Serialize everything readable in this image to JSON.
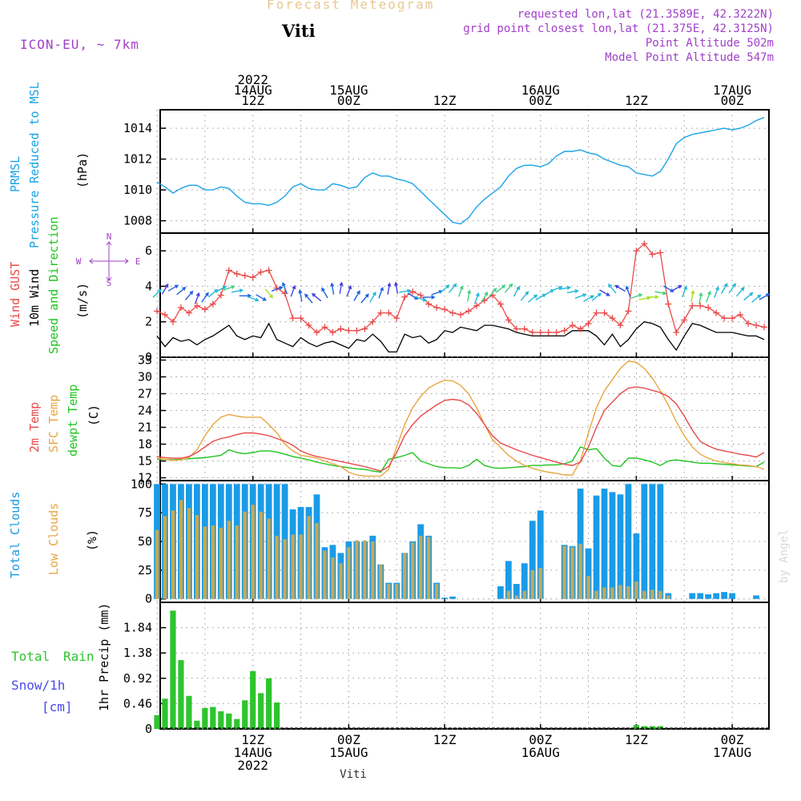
{
  "header": {
    "title": "Forecast Meteogram",
    "location": "Viti",
    "model": "ICON-EU, ~ 7km",
    "requested": "requested lon,lat (21.3589E, 42.3222N)",
    "grid_point": "grid point closest lon,lat (21.375E, 42.3125N)",
    "point_altitude": "Point Altitude 502m",
    "model_altitude": "Model Point Altitude 547m",
    "credit": "by Angel",
    "footer_location": "Viti"
  },
  "colors": {
    "prmsl": "#1aa3e8",
    "gust": "#e84a4a",
    "wind": "#000000",
    "t2m": "#e84a4a",
    "tsfc": "#e8a640",
    "dewpt": "#1fc41f",
    "total_cloud": "#1a9be8",
    "low_cloud": "#c8a850",
    "rain": "#2ec42e",
    "snow": "#4a4ae8",
    "title": "#e8c890",
    "meta": "#a040c8"
  },
  "chart_data": [
    {
      "type": "line",
      "id": "pressure",
      "ylabel": "PRMSL Pressure Reduced to MSL",
      "units": "(hPa)",
      "ylim": [
        1007.2,
        1015.2
      ],
      "yticks": [
        "1008",
        "1010",
        "1012",
        "1014"
      ],
      "x": [
        0,
        1,
        2,
        3,
        4,
        5,
        6,
        7,
        8,
        9,
        10,
        11,
        12,
        13,
        14,
        15,
        16,
        17,
        18,
        19,
        20,
        21,
        22,
        23,
        24,
        25,
        26,
        27,
        28,
        29,
        30,
        31,
        32,
        33,
        34,
        35,
        36,
        37,
        38,
        39,
        40,
        41,
        42,
        43,
        44,
        45,
        46,
        47,
        48,
        49,
        50,
        51,
        52,
        53,
        54,
        55,
        56,
        57,
        58,
        59,
        60,
        61,
        62,
        63,
        64,
        65,
        66,
        67,
        68,
        69,
        70,
        71,
        72,
        73,
        74,
        75,
        76
      ],
      "series": [
        {
          "name": "PRMSL",
          "values": [
            1010.5,
            1010.2,
            1009.8,
            1010.1,
            1010.3,
            1010.3,
            1010.0,
            1010.0,
            1010.2,
            1010.1,
            1009.6,
            1009.2,
            1009.1,
            1009.1,
            1009.0,
            1009.2,
            1009.6,
            1010.2,
            1010.4,
            1010.1,
            1010.0,
            1010.0,
            1010.4,
            1010.3,
            1010.1,
            1010.2,
            1010.8,
            1011.1,
            1010.9,
            1010.9,
            1010.7,
            1010.6,
            1010.4,
            1009.9,
            1009.4,
            1008.9,
            1008.4,
            1007.9,
            1007.8,
            1008.2,
            1008.9,
            1009.4,
            1009.8,
            1010.2,
            1010.9,
            1011.4,
            1011.6,
            1011.6,
            1011.5,
            1011.7,
            1012.2,
            1012.5,
            1012.5,
            1012.6,
            1012.4,
            1012.3,
            1012.0,
            1011.8,
            1011.6,
            1011.5,
            1011.1,
            1011.0,
            1010.9,
            1011.2,
            1012.0,
            1013.0,
            1013.4,
            1013.6,
            1013.7,
            1013.8,
            1013.9,
            1014.0,
            1013.9,
            1014.0,
            1014.2,
            1014.5,
            1014.7
          ]
        }
      ]
    },
    {
      "type": "line",
      "id": "wind",
      "ylabel": [
        "Wind GUST",
        "10m Wind",
        "Speed and Direction"
      ],
      "units": "(m/s)",
      "compass": [
        "N",
        "W",
        "E",
        "S"
      ],
      "ylim": [
        0,
        7
      ],
      "yticks": [
        "0",
        "2",
        "4",
        "6"
      ],
      "series": [
        {
          "name": "Wind GUST",
          "values": [
            2.6,
            2.4,
            2.0,
            2.8,
            2.5,
            2.9,
            2.7,
            3.0,
            3.5,
            4.9,
            4.7,
            4.6,
            4.5,
            4.8,
            4.9,
            3.9,
            3.6,
            2.2,
            2.2,
            1.8,
            1.4,
            1.7,
            1.4,
            1.6,
            1.5,
            1.5,
            1.6,
            2.0,
            2.5,
            2.5,
            2.2,
            3.4,
            3.7,
            3.5,
            3.0,
            2.8,
            2.7,
            2.5,
            2.4,
            2.6,
            2.9,
            3.2,
            3.5,
            3.0,
            2.1,
            1.6,
            1.6,
            1.4,
            1.4,
            1.4,
            1.4,
            1.5,
            1.8,
            1.6,
            1.9,
            2.5,
            2.5,
            2.2,
            1.8,
            2.6,
            6.0,
            6.4,
            5.8,
            5.9,
            3.0,
            1.4,
            2.1,
            2.9,
            2.9,
            2.8,
            2.5,
            2.2,
            2.2,
            2.4,
            1.9,
            1.8,
            1.7
          ]
        },
        {
          "name": "10m Wind",
          "values": [
            1.2,
            0.6,
            1.1,
            0.9,
            1.0,
            0.7,
            1.0,
            1.2,
            1.5,
            1.8,
            1.2,
            1.0,
            1.2,
            1.1,
            1.9,
            1.0,
            0.8,
            0.6,
            1.1,
            0.8,
            0.6,
            0.8,
            0.9,
            0.7,
            0.5,
            1.0,
            0.9,
            1.3,
            0.9,
            0.3,
            0.3,
            1.3,
            1.1,
            1.2,
            0.8,
            1.0,
            1.5,
            1.4,
            1.7,
            1.6,
            1.5,
            1.8,
            1.8,
            1.7,
            1.6,
            1.4,
            1.3,
            1.2,
            1.2,
            1.2,
            1.2,
            1.2,
            1.5,
            1.5,
            1.5,
            1.2,
            0.7,
            1.3,
            0.6,
            1.0,
            1.6,
            2.0,
            1.9,
            1.7,
            1.0,
            0.4,
            1.2,
            1.9,
            1.8,
            1.6,
            1.4,
            1.4,
            1.4,
            1.3,
            1.2,
            1.2,
            1.0
          ]
        },
        {
          "name": "Wind direction (deg from)",
          "values": [
            225,
            210,
            240,
            230,
            220,
            200,
            215,
            230,
            240,
            250,
            260,
            270,
            290,
            300,
            320,
            250,
            160,
            200,
            170,
            140,
            130,
            150,
            170,
            190,
            200,
            210,
            220,
            210,
            200,
            190,
            170,
            260,
            300,
            290,
            270,
            250,
            230,
            220,
            200,
            190,
            200,
            210,
            220,
            230,
            220,
            210,
            220,
            230,
            240,
            240,
            250,
            260,
            260,
            250,
            240,
            230,
            300,
            140,
            120,
            160,
            250,
            260,
            270,
            280,
            300,
            240,
            200,
            190,
            190,
            200,
            200,
            210,
            215,
            220,
            230,
            230,
            240
          ]
        }
      ]
    },
    {
      "type": "line",
      "id": "temperature",
      "ylabel": [
        "2m Temp",
        "SFC Temp",
        "dewpt Temp"
      ],
      "units": "(C)",
      "ylim": [
        11.5,
        33.5
      ],
      "yticks": [
        "12",
        "15",
        "18",
        "21",
        "24",
        "27",
        "30",
        "33"
      ],
      "series": [
        {
          "name": "2m Temp",
          "values": [
            15.8,
            15.6,
            15.5,
            15.5,
            15.8,
            16.5,
            17.5,
            18.5,
            19.0,
            19.3,
            19.7,
            20.0,
            20.0,
            19.8,
            19.5,
            19.0,
            18.5,
            17.8,
            16.8,
            16.2,
            15.8,
            15.5,
            15.2,
            14.9,
            14.6,
            14.3,
            14.0,
            13.6,
            13.2,
            14.0,
            16.5,
            19.5,
            21.5,
            23.0,
            24.0,
            25.0,
            25.8,
            26.0,
            25.8,
            25.0,
            23.5,
            21.5,
            19.5,
            18.2,
            17.6,
            17.0,
            16.5,
            16.0,
            15.6,
            15.2,
            14.8,
            14.4,
            14.2,
            14.8,
            17.5,
            21.0,
            24.0,
            25.5,
            27.0,
            28.0,
            28.2,
            28.0,
            27.6,
            27.2,
            26.5,
            25.2,
            23.0,
            20.5,
            18.5,
            17.7,
            17.1,
            16.8,
            16.5,
            16.2,
            16.0,
            15.7,
            16.5
          ]
        },
        {
          "name": "SFC Temp",
          "values": [
            15.5,
            15.3,
            15.1,
            15.2,
            15.6,
            17.0,
            19.5,
            21.5,
            22.8,
            23.3,
            23.0,
            22.8,
            22.8,
            22.8,
            21.5,
            20.0,
            18.0,
            16.8,
            16.0,
            15.8,
            15.5,
            15.0,
            14.5,
            14.0,
            13.0,
            12.5,
            12.3,
            12.3,
            12.3,
            13.5,
            17.5,
            21.5,
            24.5,
            26.5,
            28.0,
            28.8,
            29.4,
            29.3,
            28.5,
            27.0,
            24.5,
            21.5,
            18.8,
            17.4,
            16.0,
            15.0,
            14.2,
            13.7,
            13.3,
            13.0,
            12.8,
            12.5,
            12.5,
            15.0,
            20.0,
            24.5,
            27.5,
            29.5,
            31.5,
            32.8,
            32.6,
            31.5,
            29.8,
            27.5,
            25.0,
            22.0,
            19.5,
            17.5,
            16.2,
            15.5,
            15.0,
            14.7,
            14.5,
            14.3,
            14.2,
            14.0,
            13.5
          ]
        },
        {
          "name": "dewpt Temp",
          "values": [
            15.3,
            15.3,
            15.2,
            15.3,
            15.4,
            15.5,
            15.6,
            15.8,
            16.0,
            17.0,
            16.5,
            16.3,
            16.5,
            16.8,
            16.8,
            16.6,
            16.2,
            15.8,
            15.5,
            15.2,
            14.8,
            14.5,
            14.2,
            14.0,
            13.8,
            13.6,
            13.5,
            13.2,
            13.0,
            15.3,
            15.6,
            16.0,
            16.5,
            15.0,
            14.5,
            14.0,
            13.8,
            13.8,
            13.7,
            14.2,
            15.3,
            14.2,
            13.8,
            13.7,
            13.8,
            13.9,
            14.0,
            14.2,
            14.2,
            14.3,
            14.3,
            14.5,
            15.0,
            17.5,
            17.0,
            17.2,
            15.5,
            14.2,
            14.0,
            15.5,
            15.5,
            15.2,
            14.8,
            14.2,
            15.0,
            15.2,
            15.0,
            14.8,
            14.6,
            14.6,
            14.5,
            14.4,
            14.3,
            14.2,
            14.1,
            14.0,
            14.8
          ]
        }
      ]
    },
    {
      "type": "bar",
      "id": "clouds",
      "ylabel": [
        "Total Clouds",
        "Low Clouds"
      ],
      "units": "(%)",
      "ylim": [
        -3,
        103
      ],
      "yticks": [
        "0",
        "25",
        "50",
        "75",
        "100"
      ],
      "series": [
        {
          "name": "Total Clouds",
          "values": [
            100,
            100,
            100,
            100,
            100,
            100,
            100,
            100,
            100,
            100,
            100,
            100,
            100,
            100,
            100,
            100,
            100,
            78,
            80,
            80,
            91,
            45,
            47,
            40,
            50,
            50,
            50,
            55,
            30,
            14,
            14,
            40,
            50,
            65,
            55,
            14,
            1,
            2,
            0,
            0,
            0,
            0,
            0,
            11,
            33,
            13,
            31,
            68,
            77,
            0,
            0,
            47,
            46,
            96,
            44,
            90,
            96,
            93,
            91,
            100,
            57,
            100,
            100,
            100,
            5,
            0,
            0,
            5,
            5,
            4,
            5,
            6,
            5,
            0,
            0,
            3,
            0
          ]
        },
        {
          "name": "Low Clouds",
          "values": [
            60,
            72,
            77,
            86,
            79,
            73,
            63,
            64,
            62,
            68,
            64,
            76,
            82,
            76,
            70,
            55,
            52,
            56,
            56,
            72,
            66,
            42,
            36,
            31,
            45,
            51,
            51,
            50,
            30,
            13,
            13,
            40,
            49,
            55,
            54,
            13,
            0,
            0,
            0,
            0,
            0,
            0,
            0,
            0,
            7,
            3,
            7,
            25,
            27,
            0,
            0,
            46,
            45,
            48,
            20,
            7,
            10,
            10,
            12,
            11,
            15,
            7,
            8,
            7,
            3,
            0,
            0,
            0,
            0,
            0,
            0,
            0,
            0,
            0,
            0,
            0,
            0
          ]
        }
      ]
    },
    {
      "type": "bar",
      "id": "precip",
      "ylabel": "1hr Precip (mm)",
      "legend": [
        "Total Rain",
        "Snow/1h",
        "[cm]"
      ],
      "ylim": [
        0,
        2.3
      ],
      "yticks": [
        "0",
        "0.46",
        "0.92",
        "1.38",
        "1.84"
      ],
      "series": [
        {
          "name": "Total Rain",
          "values": [
            0.25,
            0.55,
            2.15,
            1.25,
            0.6,
            0.15,
            0.38,
            0.4,
            0.32,
            0.28,
            0.18,
            0.52,
            1.05,
            0.65,
            0.92,
            0.48,
            0,
            0,
            0,
            0,
            0,
            0,
            0,
            0,
            0,
            0,
            0,
            0,
            0,
            0,
            0,
            0,
            0,
            0,
            0,
            0,
            0,
            0,
            0,
            0,
            0,
            0,
            0,
            0,
            0,
            0,
            0,
            0,
            0,
            0,
            0,
            0,
            0,
            0,
            0,
            0,
            0,
            0,
            0,
            0,
            0.07,
            0.05,
            0.05,
            0.05,
            0,
            0,
            0,
            0,
            0,
            0,
            0,
            0,
            0,
            0,
            0,
            0,
            0
          ]
        },
        {
          "name": "Snow/1h",
          "values": [
            0,
            0,
            0,
            0,
            0,
            0,
            0,
            0,
            0,
            0,
            0,
            0,
            0,
            0,
            0,
            0,
            0,
            0,
            0,
            0,
            0,
            0,
            0,
            0,
            0,
            0,
            0,
            0,
            0,
            0,
            0,
            0,
            0,
            0,
            0,
            0,
            0,
            0,
            0,
            0,
            0,
            0,
            0,
            0,
            0,
            0,
            0,
            0,
            0,
            0,
            0,
            0,
            0,
            0,
            0,
            0,
            0,
            0,
            0,
            0,
            0,
            0,
            0,
            0,
            0,
            0,
            0,
            0,
            0,
            0,
            0,
            0,
            0,
            0,
            0,
            0,
            0
          ]
        }
      ]
    }
  ],
  "time_axis": {
    "ticks": [
      {
        "x": 12,
        "top": [
          "2022",
          "14AUG",
          "12Z"
        ],
        "bottom": [
          "12Z",
          "14AUG",
          "2022"
        ]
      },
      {
        "x": 24,
        "top": [
          "15AUG",
          "00Z"
        ],
        "bottom": [
          "00Z",
          "15AUG"
        ]
      },
      {
        "x": 36,
        "top": [
          "12Z"
        ],
        "bottom": [
          "12Z"
        ]
      },
      {
        "x": 48,
        "top": [
          "16AUG",
          "00Z"
        ],
        "bottom": [
          "00Z",
          "16AUG"
        ]
      },
      {
        "x": 60,
        "top": [
          "12Z"
        ],
        "bottom": [
          "12Z"
        ]
      },
      {
        "x": 72,
        "top": [
          "17AUG",
          "00Z"
        ],
        "bottom": [
          "00Z",
          "17AUG"
        ]
      }
    ],
    "x_range": [
      0.4,
      76.6
    ],
    "minor_every": 6
  }
}
